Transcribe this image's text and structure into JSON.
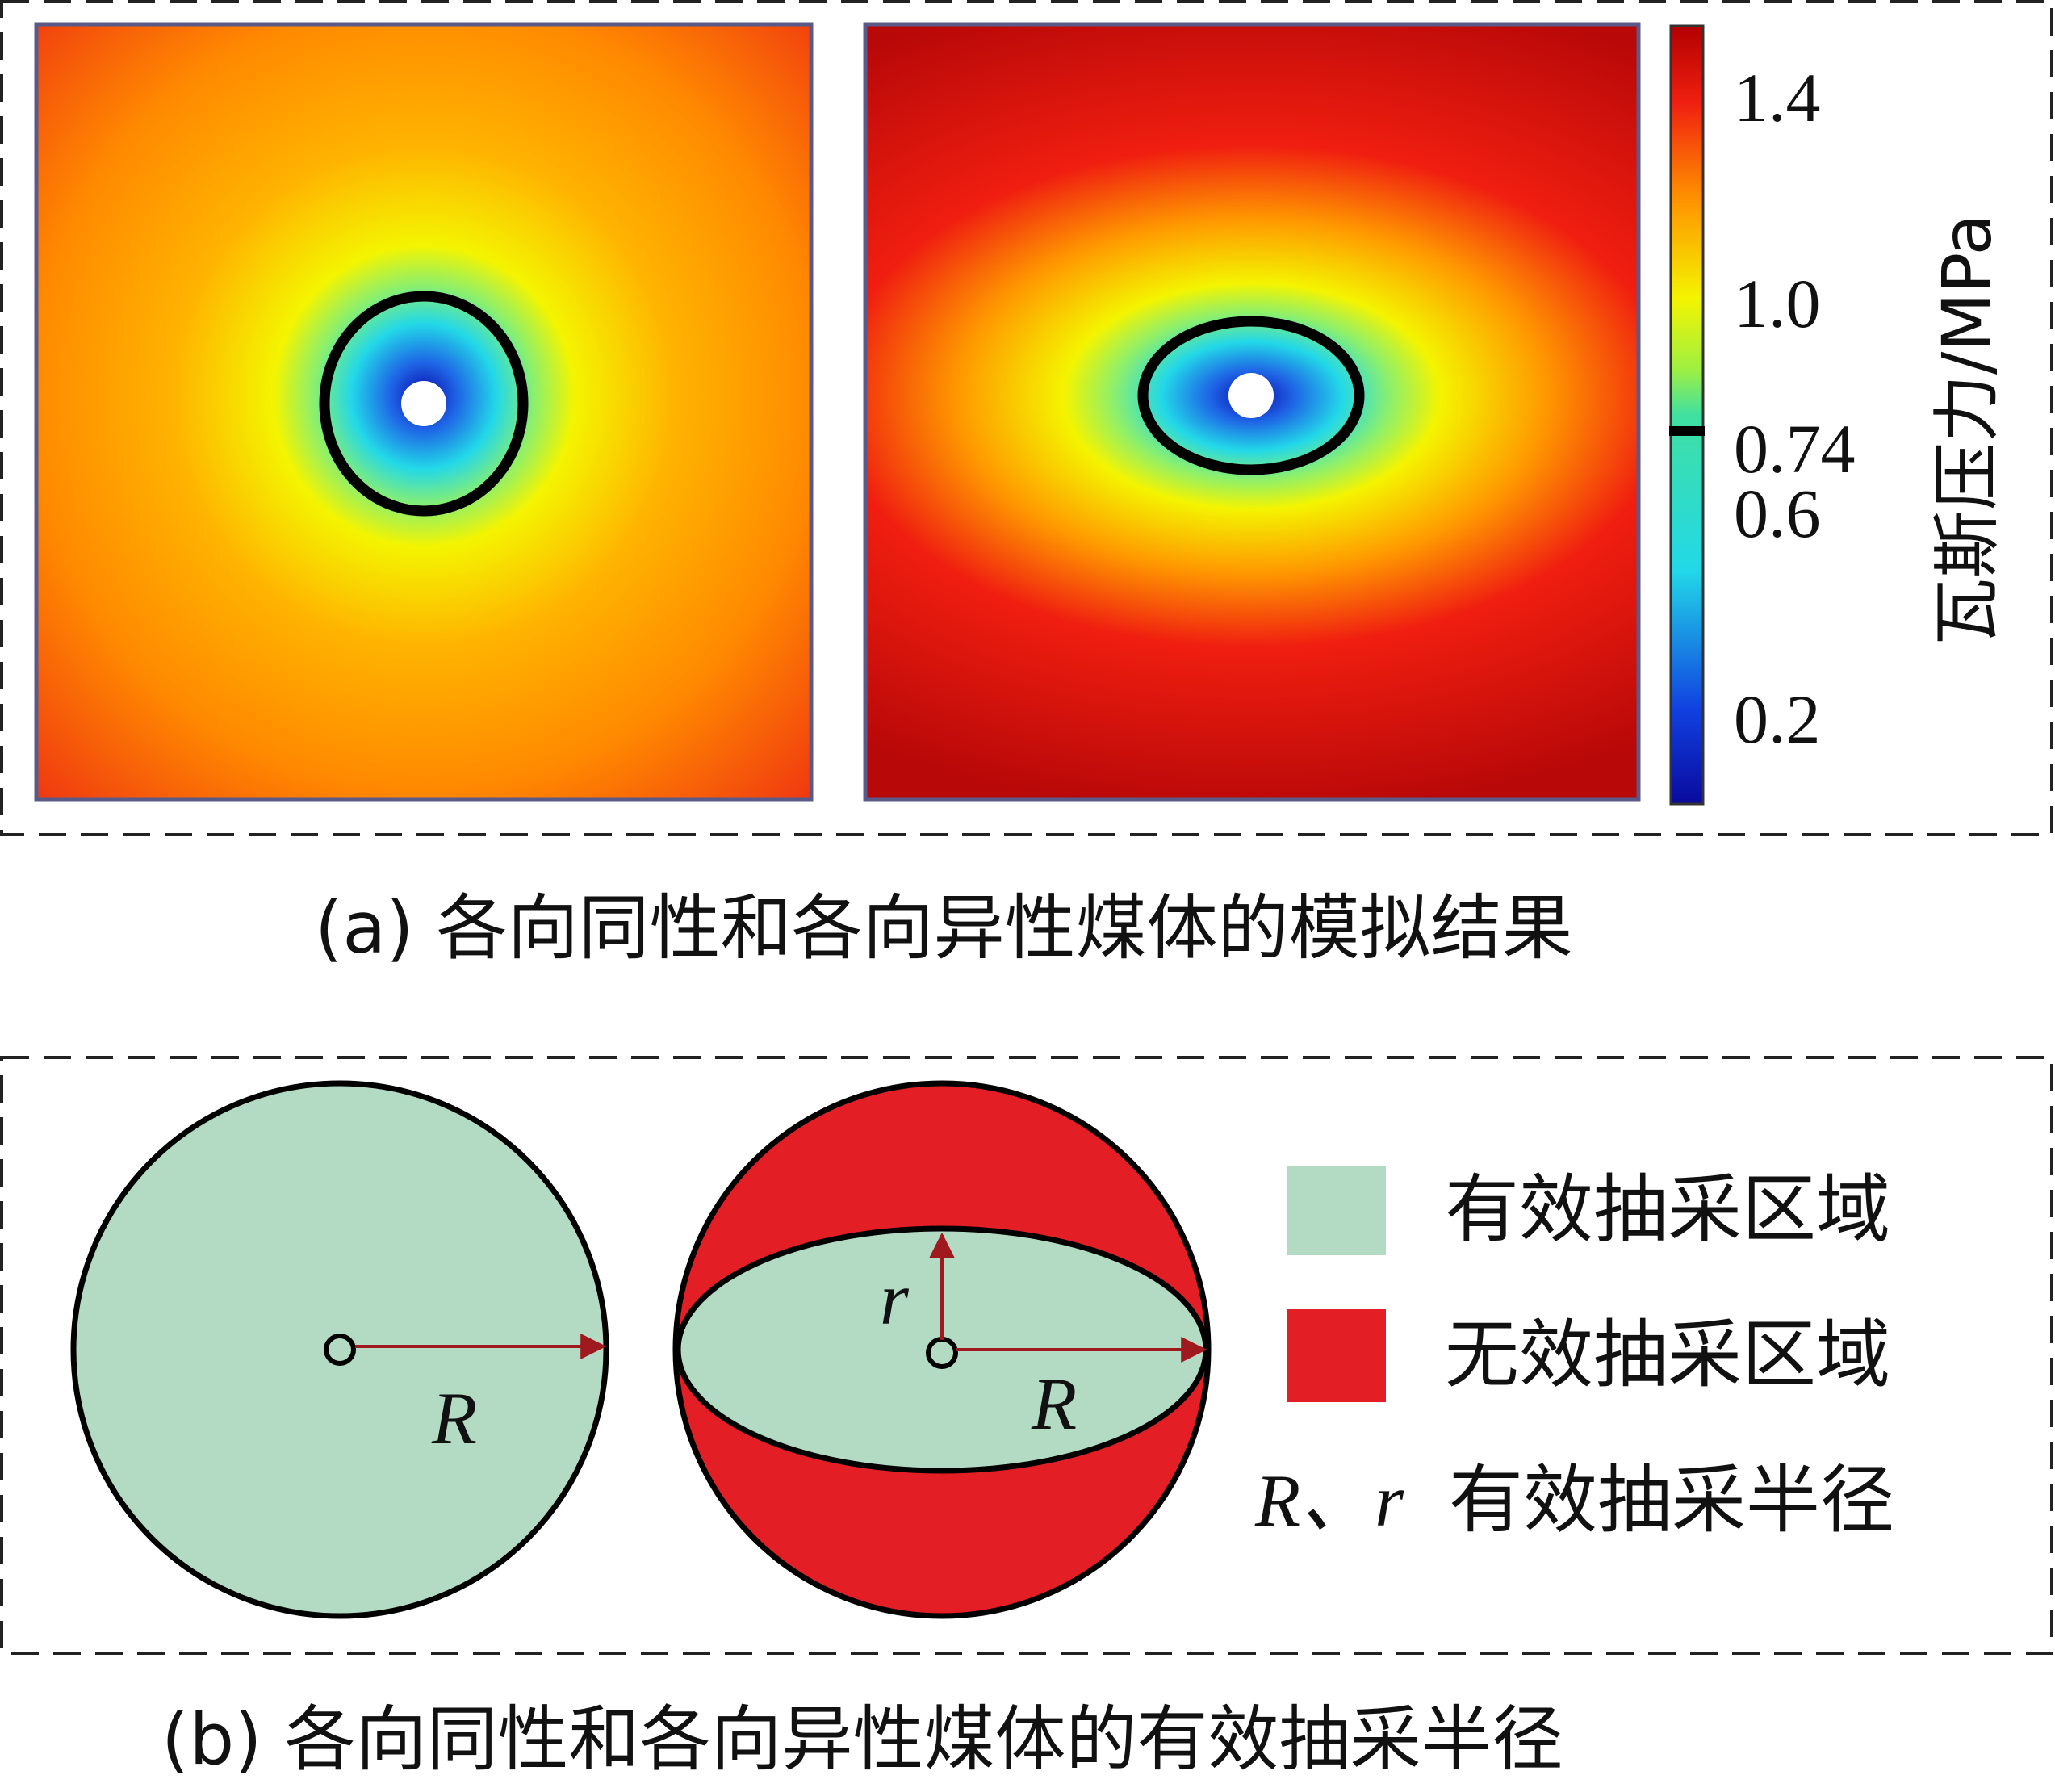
{
  "panel_a": {
    "caption": "(a) 各向同性和各向异性煤体的模拟结果",
    "colorbar": {
      "title": "瓦斯压力/MPa",
      "ticks": [
        "1.4",
        "1.0",
        "0.74",
        "0.6",
        "0.2"
      ],
      "colors": {
        "low": "#0a0a9e",
        "cyan": "#22d8e8",
        "yellow": "#f4f400",
        "orange": "#ff8c00",
        "red": "#e81a1a",
        "high": "#b30000"
      }
    }
  },
  "panel_b": {
    "caption": "(b) 各向同性和各向异性煤体的有效抽采半径",
    "circle_label_R": "R",
    "ellipse_label_r": "r",
    "ellipse_label_R": "R",
    "legend": {
      "effective": "有效抽采区域",
      "ineffective": "无效抽采区域",
      "radius_symbol": "R、r",
      "radius_text": "有效抽采半径"
    },
    "colors": {
      "effective": "#b3dbc3",
      "ineffective": "#e41e25",
      "arrow": "#a0191e"
    }
  }
}
